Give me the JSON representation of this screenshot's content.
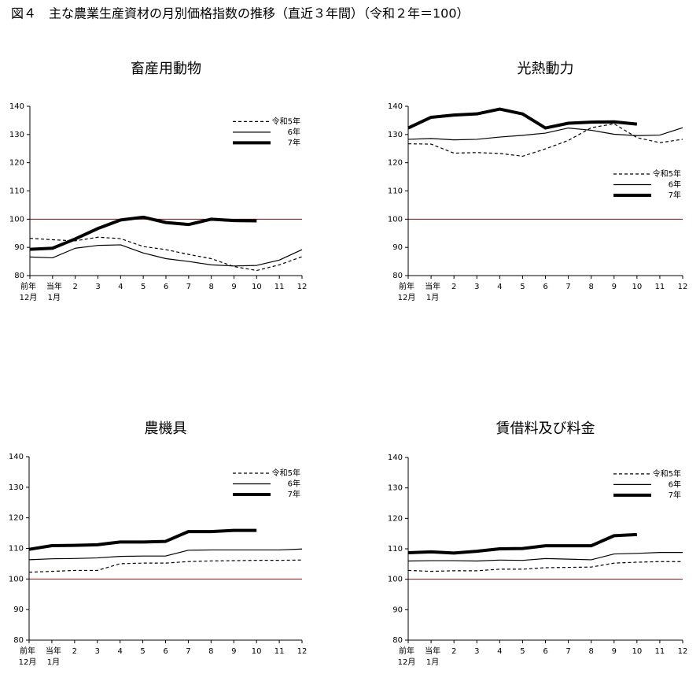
{
  "title": "図４　主な農業生産資材の月別価格指数の推移（直近３年間）（令和２年＝100）",
  "chart_data": [
    {
      "type": "line",
      "title": "畜産用動物",
      "categories": [
        [
          "前年",
          "12月"
        ],
        [
          "当年",
          "1月"
        ],
        [
          "2"
        ],
        [
          "3"
        ],
        [
          "4"
        ],
        [
          "5"
        ],
        [
          "6"
        ],
        [
          "7"
        ],
        [
          "8"
        ],
        [
          "9"
        ],
        [
          "10"
        ],
        [
          "11"
        ],
        [
          "12"
        ]
      ],
      "ylim": [
        80,
        140
      ],
      "yticks": [
        80,
        90,
        100,
        110,
        120,
        130,
        140
      ],
      "reference_line": 100,
      "reference_color": "#7a1010",
      "legend": "upper right",
      "series": [
        {
          "name": "令和5年",
          "color": "#000000",
          "line_style": "dashed",
          "line_width": 1.2,
          "values": [
            93.2,
            92.7,
            92.3,
            93.6,
            93.1,
            90.3,
            89.2,
            87.5,
            86.0,
            83.2,
            81.8,
            83.8,
            86.7
          ]
        },
        {
          "name": "6年",
          "color": "#000000",
          "line_style": "solid",
          "line_width": 1.2,
          "values": [
            86.6,
            86.3,
            89.7,
            90.7,
            90.9,
            88.0,
            86.0,
            85.0,
            83.8,
            83.4,
            83.6,
            85.5,
            89.2
          ]
        },
        {
          "name": "7年",
          "color": "#000000",
          "line_style": "solid",
          "line_width": 4,
          "values": [
            89.3,
            89.7,
            93.0,
            96.7,
            99.7,
            100.7,
            98.8,
            98.1,
            100.0,
            99.5,
            99.4,
            null,
            null
          ]
        }
      ]
    },
    {
      "type": "line",
      "title": "光熱動力",
      "categories": [
        [
          "前年",
          "12月"
        ],
        [
          "当年",
          "1月"
        ],
        [
          "2"
        ],
        [
          "3"
        ],
        [
          "4"
        ],
        [
          "5"
        ],
        [
          "6"
        ],
        [
          "7"
        ],
        [
          "8"
        ],
        [
          "9"
        ],
        [
          "10"
        ],
        [
          "11"
        ],
        [
          "12"
        ]
      ],
      "ylim": [
        80,
        140
      ],
      "yticks": [
        80,
        90,
        100,
        110,
        120,
        130,
        140
      ],
      "reference_line": 100,
      "reference_color": "#7a1010",
      "legend": "center right",
      "series": [
        {
          "name": "令和5年",
          "color": "#000000",
          "line_style": "dashed",
          "line_width": 1.2,
          "values": [
            126.7,
            126.6,
            123.4,
            123.6,
            123.3,
            122.3,
            124.9,
            127.9,
            132.4,
            133.8,
            128.9,
            127.1,
            128.3
          ]
        },
        {
          "name": "6年",
          "color": "#000000",
          "line_style": "solid",
          "line_width": 1.2,
          "values": [
            128.3,
            128.6,
            128.1,
            128.3,
            129.1,
            129.7,
            130.5,
            132.3,
            131.5,
            130.1,
            129.6,
            129.8,
            132.4
          ]
        },
        {
          "name": "7年",
          "color": "#000000",
          "line_style": "solid",
          "line_width": 4,
          "values": [
            132.3,
            136.1,
            136.9,
            137.3,
            139.0,
            137.3,
            132.3,
            134.0,
            134.4,
            134.5,
            133.7,
            null,
            null
          ]
        }
      ]
    },
    {
      "type": "line",
      "title": "農機具",
      "categories": [
        [
          "前年",
          "12月"
        ],
        [
          "当年",
          "1月"
        ],
        [
          "2"
        ],
        [
          "3"
        ],
        [
          "4"
        ],
        [
          "5"
        ],
        [
          "6"
        ],
        [
          "7"
        ],
        [
          "8"
        ],
        [
          "9"
        ],
        [
          "10"
        ],
        [
          "11"
        ],
        [
          "12"
        ]
      ],
      "ylim": [
        80,
        140
      ],
      "yticks": [
        80,
        90,
        100,
        110,
        120,
        130,
        140
      ],
      "reference_line": 100,
      "reference_color": "#7a1010",
      "legend": "upper right",
      "series": [
        {
          "name": "令和5年",
          "color": "#000000",
          "line_style": "dashed",
          "line_width": 1.2,
          "values": [
            102.2,
            102.5,
            102.8,
            102.8,
            105.0,
            105.2,
            105.2,
            105.7,
            105.9,
            106.0,
            106.1,
            106.1,
            106.2
          ]
        },
        {
          "name": "6年",
          "color": "#000000",
          "line_style": "solid",
          "line_width": 1.2,
          "values": [
            106.3,
            106.6,
            106.7,
            106.9,
            107.4,
            107.5,
            107.5,
            109.4,
            109.5,
            109.5,
            109.5,
            109.5,
            109.8
          ]
        },
        {
          "name": "7年",
          "color": "#000000",
          "line_style": "solid",
          "line_width": 4,
          "values": [
            109.7,
            110.9,
            111.0,
            111.2,
            112.1,
            112.1,
            112.3,
            115.5,
            115.5,
            115.9,
            115.9,
            null,
            null
          ]
        }
      ]
    },
    {
      "type": "line",
      "title": "賃借料及び料金",
      "categories": [
        [
          "前年",
          "12月"
        ],
        [
          "当年",
          "1月"
        ],
        [
          "2"
        ],
        [
          "3"
        ],
        [
          "4"
        ],
        [
          "5"
        ],
        [
          "6"
        ],
        [
          "7"
        ],
        [
          "8"
        ],
        [
          "9"
        ],
        [
          "10"
        ],
        [
          "11"
        ],
        [
          "12"
        ]
      ],
      "ylim": [
        80,
        140
      ],
      "yticks": [
        80,
        90,
        100,
        110,
        120,
        130,
        140
      ],
      "reference_line": 100,
      "reference_color": "#7a1010",
      "legend": "upper right",
      "series": [
        {
          "name": "令和5年",
          "color": "#000000",
          "line_style": "dashed",
          "line_width": 1.2,
          "values": [
            102.9,
            102.6,
            102.8,
            102.8,
            103.3,
            103.3,
            103.8,
            103.9,
            104.0,
            105.3,
            105.6,
            105.8,
            105.8
          ]
        },
        {
          "name": "6年",
          "color": "#000000",
          "line_style": "solid",
          "line_width": 1.2,
          "values": [
            106.0,
            106.1,
            106.1,
            106.0,
            106.3,
            106.2,
            106.8,
            106.6,
            106.4,
            108.3,
            108.5,
            108.8,
            108.8
          ]
        },
        {
          "name": "7年",
          "color": "#000000",
          "line_style": "solid",
          "line_width": 4,
          "values": [
            108.7,
            109.0,
            108.6,
            109.2,
            110.0,
            110.1,
            111.0,
            111.0,
            111.0,
            114.3,
            114.7,
            null,
            null
          ]
        }
      ]
    }
  ]
}
